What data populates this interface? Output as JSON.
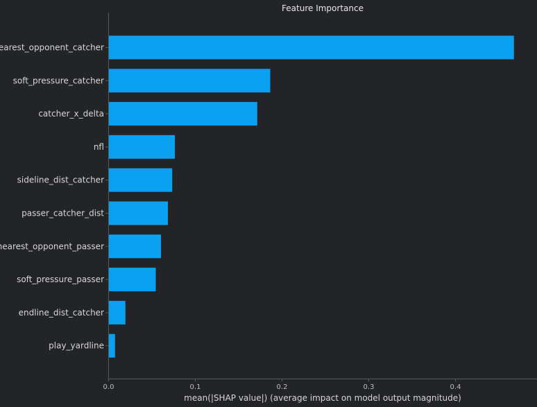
{
  "chart_data": {
    "type": "bar",
    "orientation": "horizontal",
    "title": "Feature Importance",
    "xlabel": "mean(|SHAP value|) (average impact on model output magnitude)",
    "ylabel": "",
    "categories": [
      "nearest_opponent_catcher",
      "soft_pressure_catcher",
      "catcher_x_delta",
      "nfl",
      "sideline_dist_catcher",
      "passer_catcher_dist",
      "nearest_opponent_passer",
      "soft_pressure_passer",
      "endline_dist_catcher",
      "play_yardline"
    ],
    "values": [
      0.467,
      0.186,
      0.171,
      0.076,
      0.073,
      0.068,
      0.06,
      0.054,
      0.019,
      0.007
    ],
    "xlim": [
      0.0,
      0.49
    ],
    "xticks": [
      0.0,
      0.1,
      0.2,
      0.3,
      0.4
    ],
    "xtick_labels": [
      "0.0",
      "0.1",
      "0.2",
      "0.3",
      "0.4"
    ],
    "grid": false,
    "legend": "none",
    "colors": {
      "bar": "#0aa2f0",
      "background": "#222428",
      "axis": "#555a61",
      "text": "#d6d6d6"
    }
  }
}
